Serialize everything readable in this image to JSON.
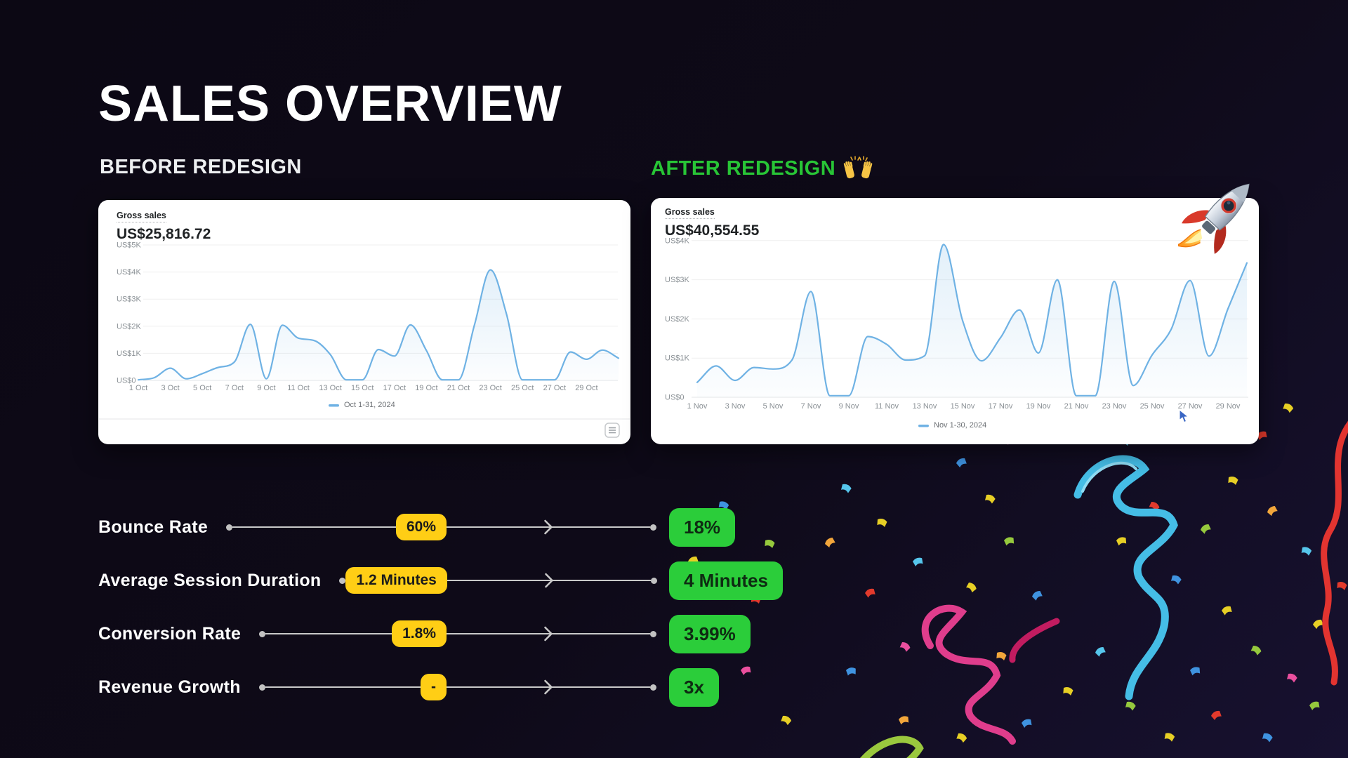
{
  "title": "SALES OVERVIEW",
  "sections": {
    "before": {
      "label": "BEFORE REDESIGN"
    },
    "after": {
      "label": "AFTER REDESIGN"
    }
  },
  "chart_data": [
    {
      "type": "line",
      "title": "Gross sales",
      "total": "US$25,816.72",
      "legend": "Oct 1-31, 2024",
      "xlabel": "",
      "ylabel": "US$",
      "ylim": [
        0,
        5000
      ],
      "x_days": [
        1,
        2,
        3,
        4,
        5,
        6,
        7,
        8,
        9,
        10,
        11,
        12,
        13,
        14,
        15,
        16,
        17,
        18,
        19,
        20,
        21,
        22,
        23,
        24,
        25,
        26,
        27,
        28,
        29,
        30,
        31
      ],
      "values": [
        20,
        100,
        450,
        60,
        250,
        480,
        680,
        2070,
        60,
        2040,
        1560,
        1470,
        950,
        20,
        20,
        1140,
        900,
        2050,
        1100,
        20,
        20,
        2050,
        4080,
        2450,
        20,
        20,
        20,
        1050,
        780,
        1120,
        820
      ],
      "xtick_labels": [
        "1 Oct",
        "3 Oct",
        "5 Oct",
        "7 Oct",
        "9 Oct",
        "11 Oct",
        "13 Oct",
        "15 Oct",
        "17 Oct",
        "19 Oct",
        "21 Oct",
        "23 Oct",
        "25 Oct",
        "27 Oct",
        "29 Oct"
      ],
      "ytick_labels": [
        "US$5K",
        "US$4K",
        "US$3K",
        "US$2K",
        "US$1K",
        "US$0"
      ],
      "grid": true,
      "legend_position": "bottom"
    },
    {
      "type": "line",
      "title": "Gross sales",
      "total": "US$40,554.55",
      "legend": "Nov 1-30, 2024",
      "xlabel": "",
      "ylabel": "US$",
      "ylim": [
        0,
        4000
      ],
      "x_days": [
        1,
        2,
        3,
        4,
        5,
        6,
        7,
        8,
        9,
        10,
        11,
        12,
        13,
        14,
        15,
        16,
        17,
        18,
        19,
        20,
        21,
        22,
        23,
        24,
        25,
        26,
        27,
        28,
        29,
        30
      ],
      "values": [
        380,
        800,
        430,
        760,
        720,
        950,
        2700,
        40,
        40,
        1550,
        1350,
        950,
        1060,
        3900,
        1960,
        930,
        1520,
        2230,
        1130,
        3000,
        40,
        40,
        2960,
        300,
        1080,
        1730,
        2980,
        1050,
        2260,
        3430
      ],
      "xtick_labels": [
        "1 Nov",
        "3 Nov",
        "5 Nov",
        "7 Nov",
        "9 Nov",
        "11 Nov",
        "13 Nov",
        "15 Nov",
        "17 Nov",
        "19 Nov",
        "21 Nov",
        "23 Nov",
        "25 Nov",
        "27 Nov",
        "29 Nov"
      ],
      "ytick_labels": [
        "US$4K",
        "US$3K",
        "US$2K",
        "US$1K",
        "US$0"
      ],
      "grid": true,
      "legend_position": "bottom"
    }
  ],
  "metrics": {
    "rows": [
      {
        "label": "Bounce Rate",
        "before": "60%",
        "after": "18%"
      },
      {
        "label": "Average Session Duration",
        "before": "1.2 Minutes",
        "after": "4 Minutes"
      },
      {
        "label": "Conversion Rate",
        "before": "1.8%",
        "after": "3.99%"
      },
      {
        "label": "Revenue Growth",
        "before": "-",
        "after": "3x"
      }
    ]
  },
  "icons": {
    "rocket": "rocket-icon",
    "raised_hands": "raised-hands-icon",
    "data_table": "data-table-icon",
    "cursor": "mouse-cursor"
  },
  "colors": {
    "background": "#0e0a18",
    "accent_green": "#28c536",
    "badge_green": "#2bcd3a",
    "pill_yellow": "#ffce15",
    "chart_line_blue": "#6fb2e4",
    "track_gray": "#c9c9c9"
  }
}
